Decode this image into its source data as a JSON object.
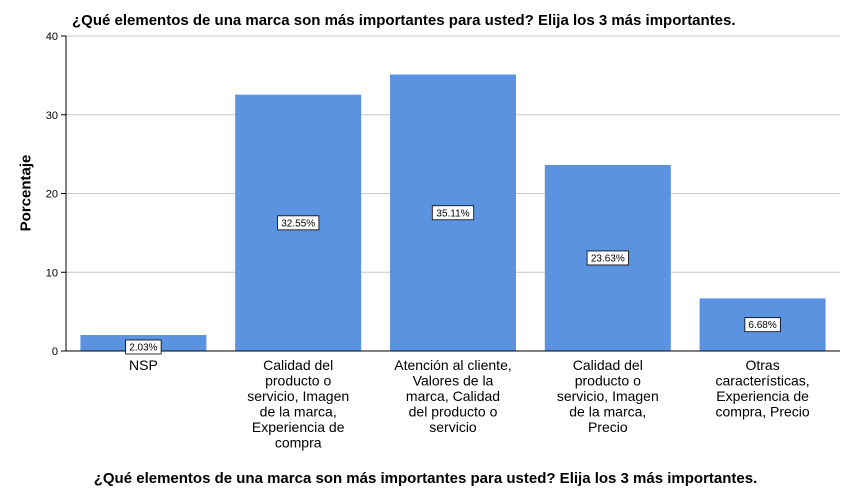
{
  "chart_data": {
    "type": "bar",
    "title": "¿Qué elementos de una marca son más importantes para usted? Elija los 3 más importantes.",
    "xlabel": "¿Qué elementos de una marca son más importantes para usted? Elija los 3 más importantes.",
    "ylabel": "Porcentaje",
    "ylim": [
      0,
      40
    ],
    "yticks": [
      "0",
      "10",
      "20",
      "30",
      "40"
    ],
    "grid": true,
    "bar_color": "#5b93e0",
    "categories": [
      [
        "NSP"
      ],
      [
        "Calidad del",
        "producto o",
        "servicio, Imagen",
        "de la marca,",
        "Experiencia de",
        "compra"
      ],
      [
        "Atención al cliente,",
        "Valores de la",
        "marca, Calidad",
        "del producto o",
        "servicio"
      ],
      [
        "Calidad del",
        "producto o",
        "servicio, Imagen",
        "de la marca,",
        "Precio"
      ],
      [
        "Otras",
        "características,",
        "Experiencia de",
        "compra, Precio"
      ]
    ],
    "values": [
      2.03,
      32.55,
      35.11,
      23.63,
      6.68
    ],
    "data_labels": [
      "2.03%",
      "32.55%",
      "35.11%",
      "23.63%",
      "6.68%"
    ]
  }
}
